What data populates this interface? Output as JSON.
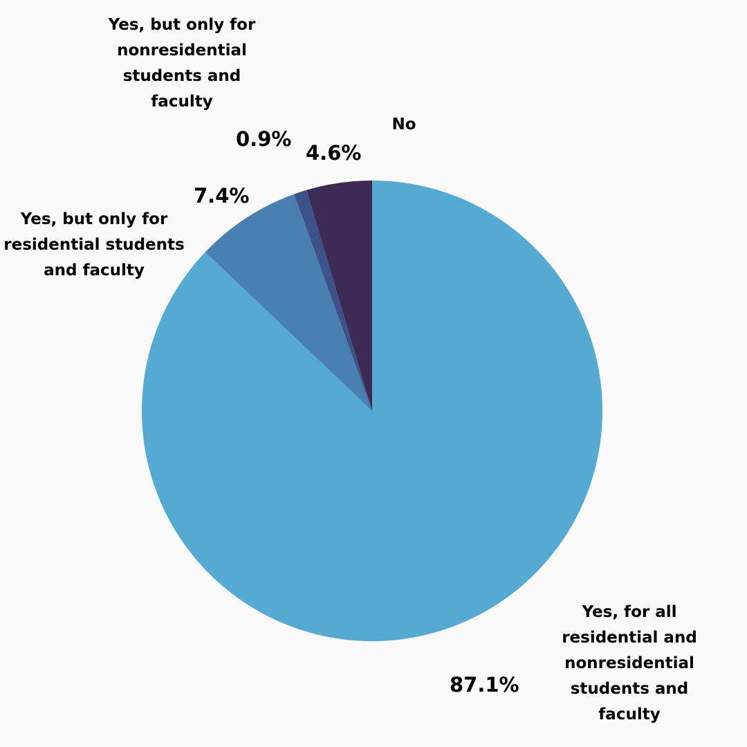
{
  "chart_data": {
    "type": "pie",
    "start_angle_deg": 0,
    "direction": "clockwise",
    "slices": [
      {
        "label": "Yes, for all residential and nonresidential students and faculty",
        "value": 87.1,
        "value_label": "87.1%",
        "color": "#55aad3"
      },
      {
        "label": "Yes, but only for residential students and faculty",
        "value": 7.4,
        "value_label": "7.4%",
        "color": "#4a7fb1"
      },
      {
        "label": "Yes, but only for nonresidential students and faculty",
        "value": 0.9,
        "value_label": "0.9%",
        "color": "#3c5289"
      },
      {
        "label": "No",
        "value": 4.6,
        "value_label": "4.6%",
        "color": "#3d2b55"
      }
    ]
  }
}
